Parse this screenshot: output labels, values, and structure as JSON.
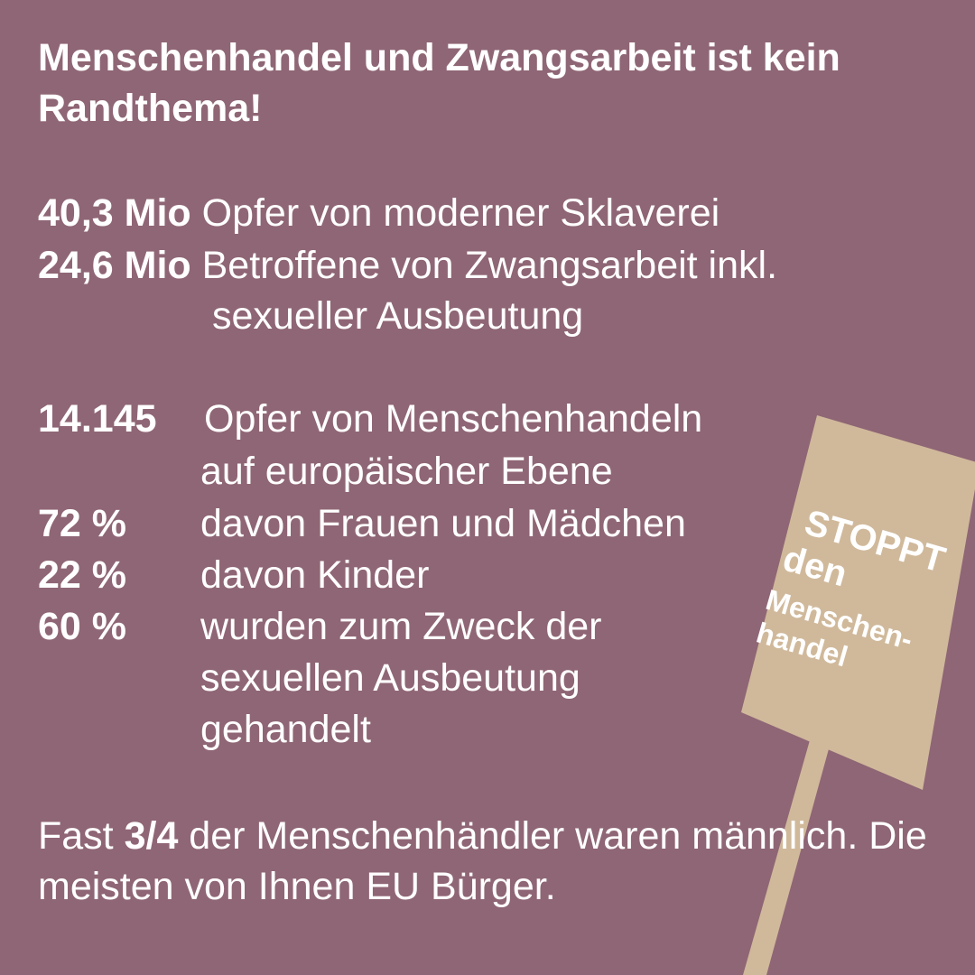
{
  "title": "Menschenhandel und Zwangsarbeit ist kein Randthema!",
  "global_stats": [
    {
      "value": "40,3 Mio",
      "text": "Opfer von moderner Sklaverei",
      "text2": ""
    },
    {
      "value": "24,6 Mio",
      "text": "Betroffene von Zwangsarbeit inkl.",
      "text2": "sexueller Ausbeutung"
    }
  ],
  "europe_stats": [
    {
      "value": "14.145",
      "lines": [
        "Opfer von Menschenhandeln",
        "auf europäischer Ebene"
      ]
    },
    {
      "value": "72 %",
      "lines": [
        "davon Frauen und Mädchen"
      ]
    },
    {
      "value": "22 %",
      "lines": [
        "davon Kinder"
      ]
    },
    {
      "value": "60 %",
      "lines": [
        "wurden zum Zweck der",
        "sexuellen Ausbeutung",
        "gehandelt"
      ]
    }
  ],
  "footer": {
    "prefix": "Fast ",
    "highlight": "3/4",
    "suffix": " der Menschenhändler waren männlich. Die meisten von Ihnen EU Bürger."
  },
  "sign": {
    "line1": "STOPPT",
    "line2": "den",
    "line3": "Menschen-",
    "line4": "handel"
  },
  "colors": {
    "background": "#8f6675",
    "sign_board": "#d0b99b",
    "text": "#ffffff"
  }
}
